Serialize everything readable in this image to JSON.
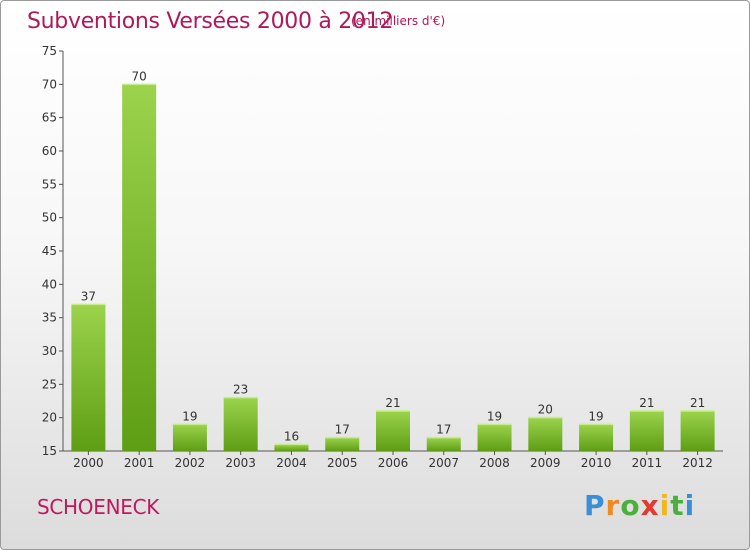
{
  "title": "Subventions Versées 2000 à 2012",
  "subtitle": "(en milliers d'€)",
  "town": "SCHOENECK",
  "brand": [
    "P",
    "r",
    "o",
    "x",
    "i",
    "t",
    "i"
  ],
  "colors": {
    "title": "#b1185a",
    "bar_light": "#9bd34c",
    "bar_dark": "#5e9e14",
    "axis": "#555555"
  },
  "chart_data": {
    "type": "bar",
    "title": "Subventions Versées 2000 à 2012",
    "xlabel": "",
    "ylabel": "",
    "ylim": [
      15,
      75
    ],
    "yticks": [
      15,
      20,
      25,
      30,
      35,
      40,
      45,
      50,
      55,
      60,
      65,
      70,
      75
    ],
    "grid": false,
    "categories": [
      "2000",
      "2001",
      "2002",
      "2003",
      "2004",
      "2005",
      "2006",
      "2007",
      "2008",
      "2009",
      "2010",
      "2011",
      "2012"
    ],
    "values": [
      37,
      70,
      19,
      23,
      16,
      17,
      21,
      17,
      19,
      20,
      19,
      21,
      21
    ]
  }
}
